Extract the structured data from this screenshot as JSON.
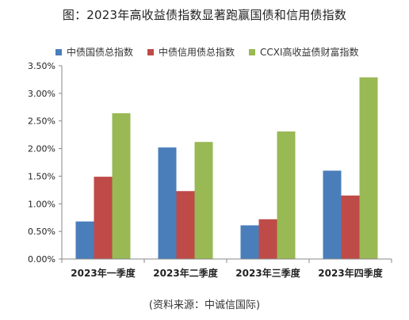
{
  "title": "图：2023年高收益债指数显著跑赢国债和信用债指数",
  "source": "(资料来源：中诚信国际)",
  "chart_data": {
    "type": "bar",
    "categories": [
      "2023年一季度",
      "2023年二季度",
      "2023年三季度",
      "2023年四季度"
    ],
    "series": [
      {
        "name": "中债国债总指数",
        "color": "#4a7ebb",
        "values": [
          0.0068,
          0.0202,
          0.0061,
          0.016
        ]
      },
      {
        "name": "中债信用债总指数",
        "color": "#be4b48",
        "values": [
          0.0149,
          0.0123,
          0.0072,
          0.0115
        ]
      },
      {
        "name": "CCXI高收益债财富指数",
        "color": "#98b954",
        "values": [
          0.0264,
          0.0212,
          0.0231,
          0.0329
        ]
      }
    ],
    "ylim": [
      0,
      0.035
    ],
    "yticks": [
      "0.00%",
      "0.50%",
      "1.00%",
      "1.50%",
      "2.00%",
      "2.50%",
      "3.00%",
      "3.50%"
    ],
    "ytick_values": [
      0,
      0.005,
      0.01,
      0.015,
      0.02,
      0.025,
      0.03,
      0.035
    ],
    "xlabel": "",
    "ylabel": "",
    "grid": false,
    "legend_position": "top"
  }
}
